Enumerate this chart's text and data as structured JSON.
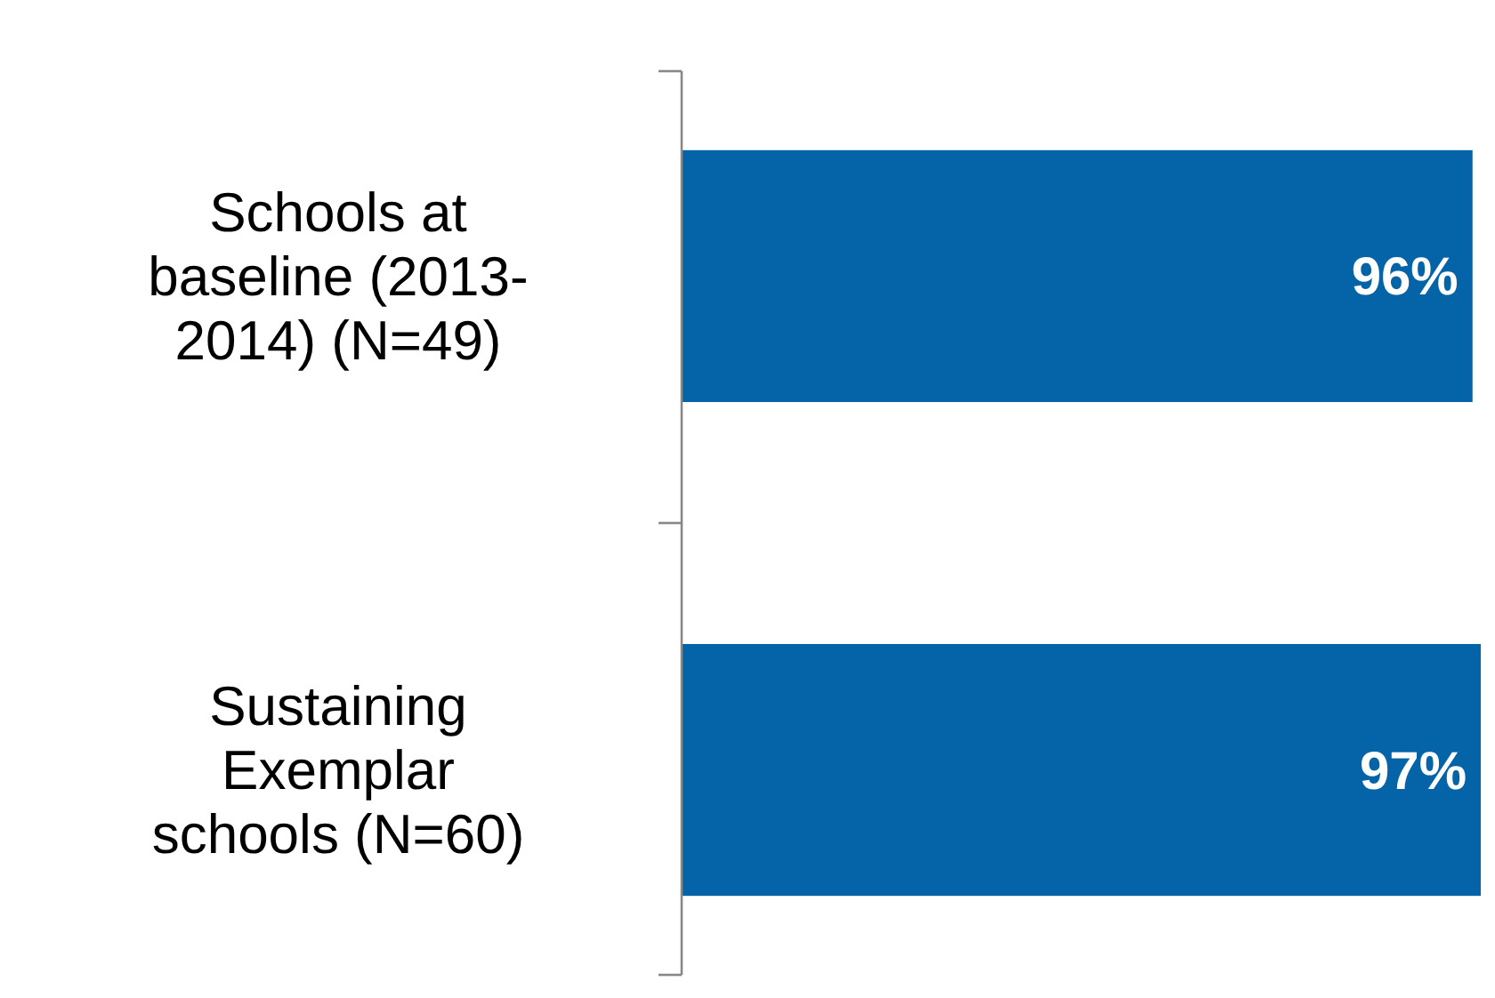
{
  "chart_data": {
    "type": "bar",
    "orientation": "horizontal",
    "categories": [
      "Schools at baseline (2013-2014) (N=49)",
      "Sustaining Exemplar schools (N=60)"
    ],
    "values": [
      96,
      97
    ],
    "value_labels": [
      "96%",
      "97%"
    ],
    "color": "#0563a8"
  }
}
